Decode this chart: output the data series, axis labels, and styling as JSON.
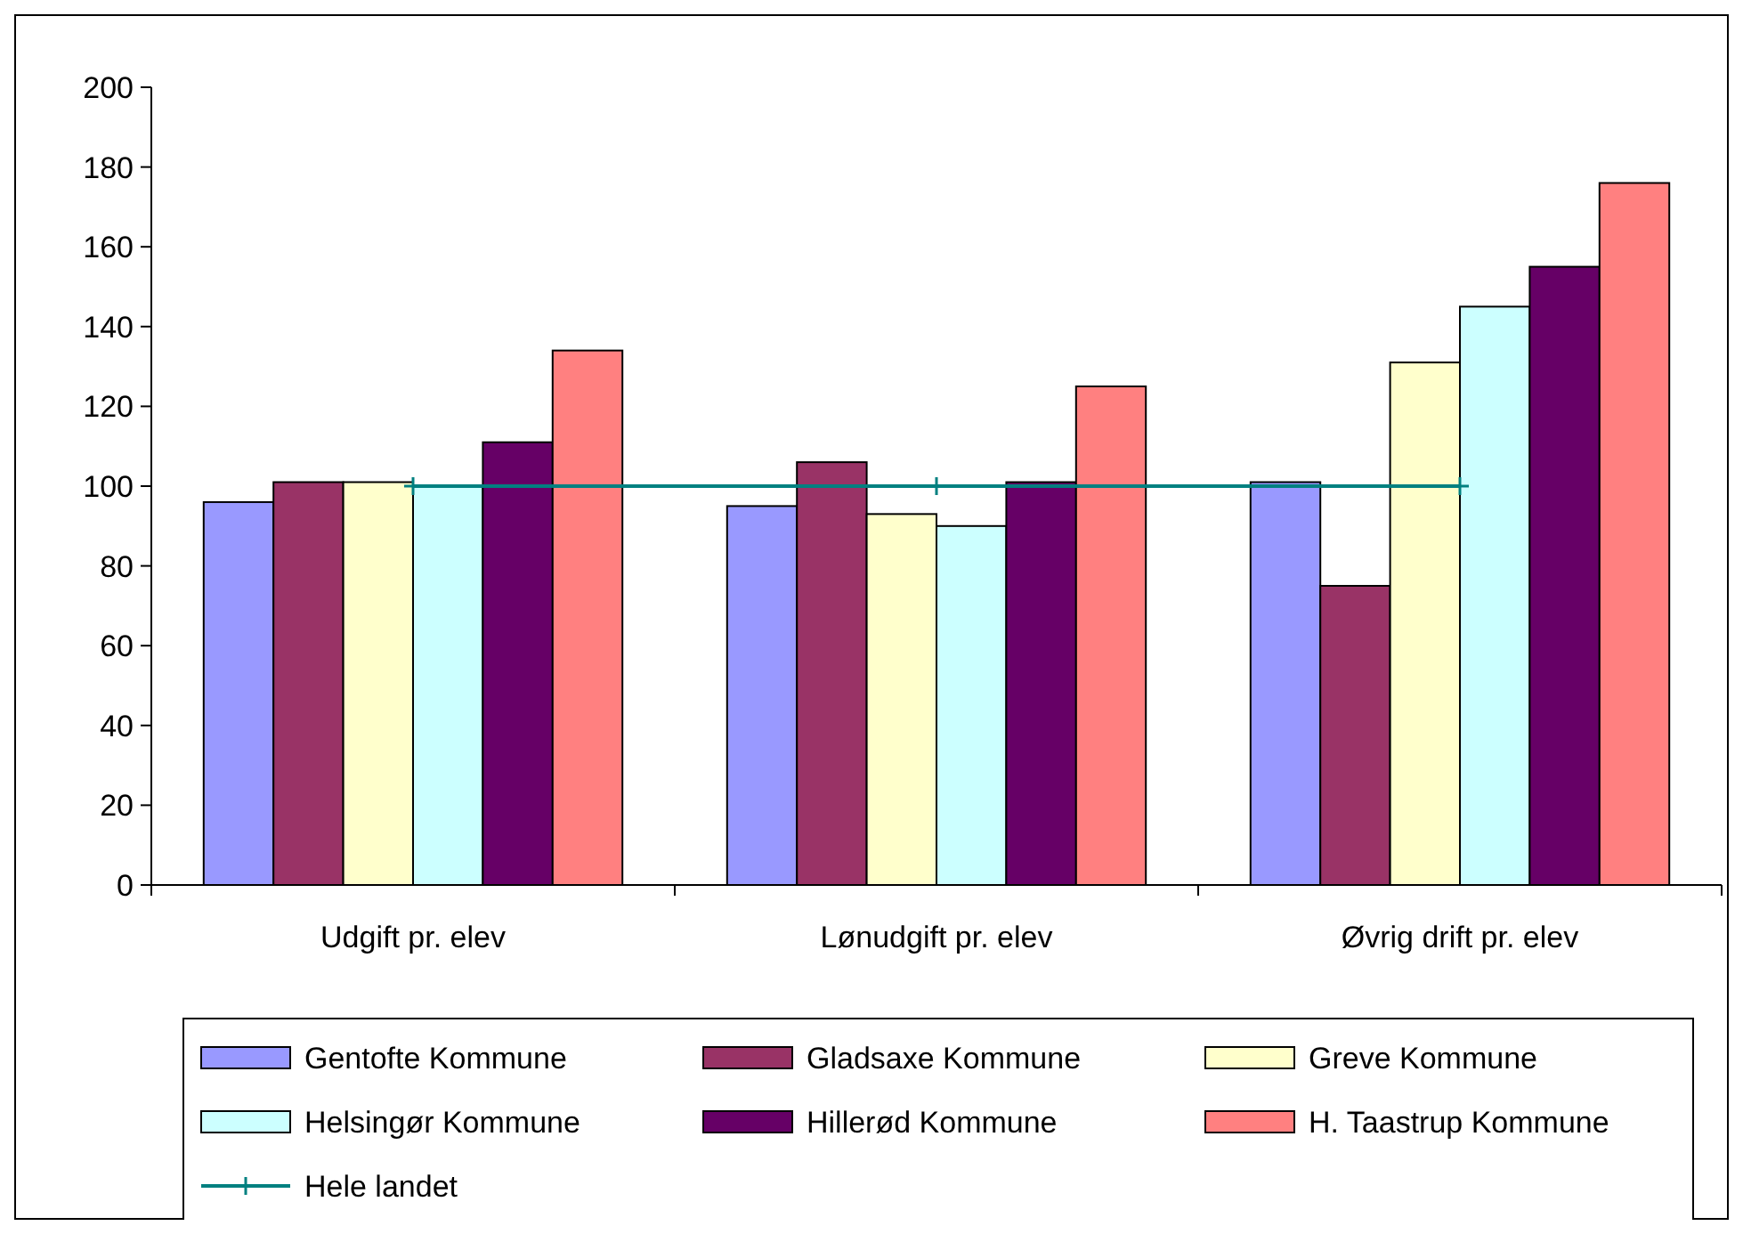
{
  "chart_data": {
    "type": "bar",
    "categories": [
      "Udgift pr. elev",
      "Lønudgift pr. elev",
      "Øvrig drift pr. elev"
    ],
    "series": [
      {
        "name": "Gentofte Kommune",
        "color": "#9999ff",
        "values": [
          96,
          95,
          101
        ]
      },
      {
        "name": "Gladsaxe Kommune",
        "color": "#993366",
        "values": [
          101,
          106,
          75
        ]
      },
      {
        "name": "Greve Kommune",
        "color": "#ffffcc",
        "values": [
          101,
          93,
          131
        ]
      },
      {
        "name": "Helsingør Kommune",
        "color": "#ccffff",
        "values": [
          100,
          90,
          145
        ]
      },
      {
        "name": "Hillerød Kommune",
        "color": "#660066",
        "values": [
          111,
          101,
          155
        ]
      },
      {
        "name": "H. Taastrup Kommune",
        "color": "#ff8080",
        "values": [
          134,
          125,
          176
        ]
      },
      {
        "name": "Hele landet",
        "type": "line",
        "color": "#008080",
        "values": [
          100,
          100,
          100
        ],
        "marker": "cross"
      }
    ],
    "ylim": [
      0,
      200
    ],
    "yticks": [
      0,
      20,
      40,
      60,
      80,
      100,
      120,
      140,
      160,
      180,
      200
    ],
    "legend": "bottom"
  }
}
